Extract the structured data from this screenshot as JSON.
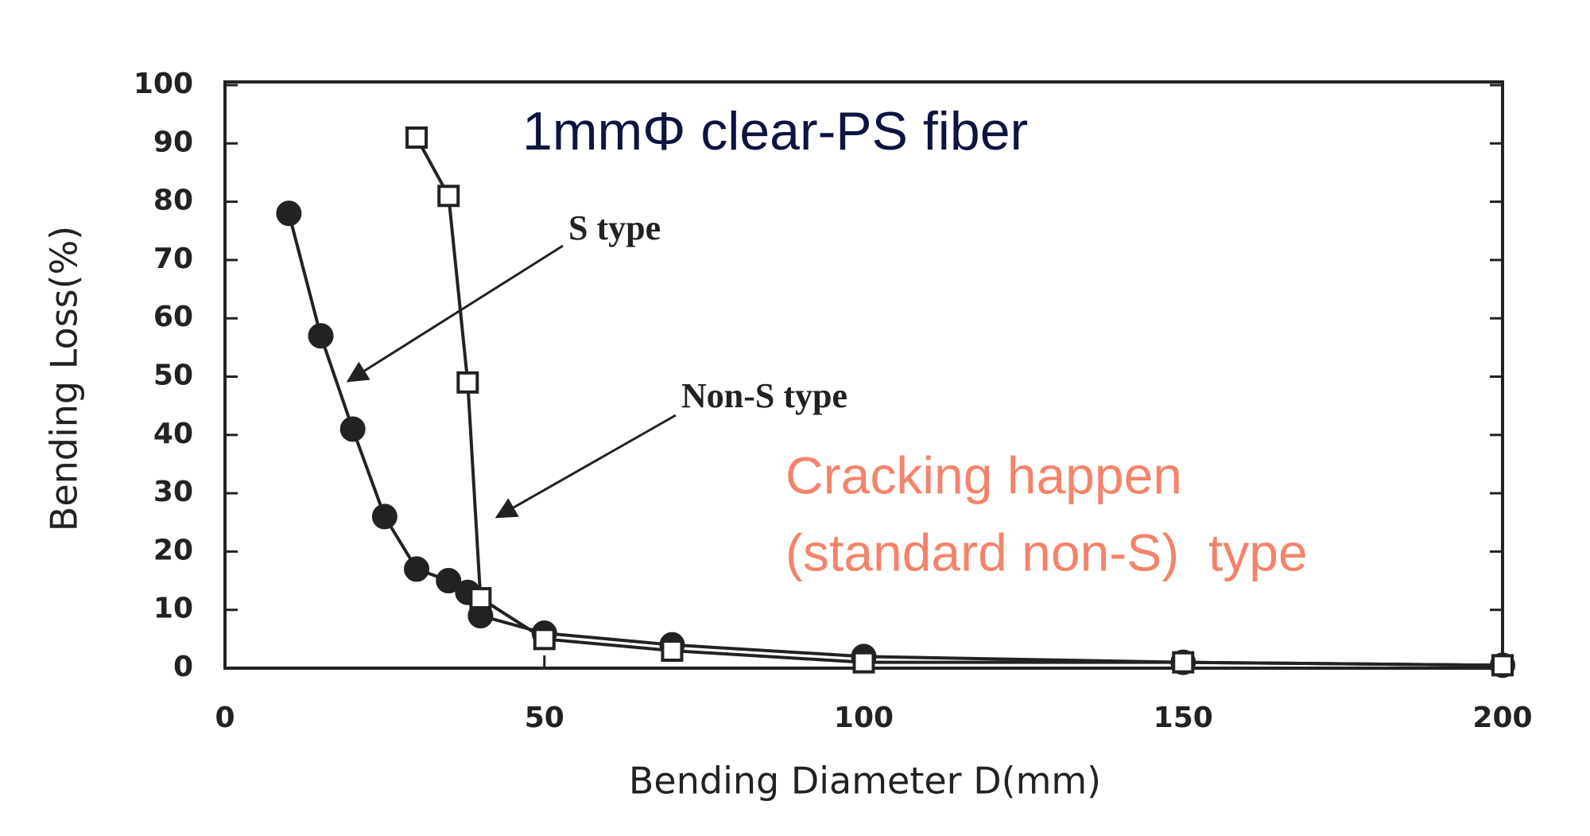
{
  "chart_data": {
    "type": "line",
    "title": "1mmΦ clear-PS fiber",
    "x_label": "Bending Diameter D(mm)",
    "y_label": "Bending Loss(%)",
    "annotations": [
      "Cracking happen",
      "(standard non-S)  type"
    ],
    "xlim": [
      0,
      200
    ],
    "xticks": [
      0,
      50,
      100,
      150,
      200
    ],
    "ylim": [
      0,
      100
    ],
    "yticks": [
      0,
      10,
      20,
      30,
      40,
      50,
      60,
      70,
      80,
      90,
      100
    ],
    "series": [
      {
        "name": "S type",
        "color": "#222222",
        "marker": "circle",
        "x": [
          10,
          15,
          20,
          25,
          30,
          35,
          38,
          40,
          50,
          70,
          100,
          150,
          200
        ],
        "values": [
          78,
          57,
          41,
          26,
          17,
          15,
          13,
          9,
          6,
          4,
          2,
          1,
          0.5
        ]
      },
      {
        "name": "Non-S type",
        "color": "#222222",
        "marker": "square",
        "x": [
          30,
          35,
          38,
          40,
          50,
          70,
          100,
          150,
          200
        ],
        "values": [
          91,
          81,
          49,
          12,
          5,
          3,
          1,
          1,
          0.5
        ]
      }
    ]
  }
}
